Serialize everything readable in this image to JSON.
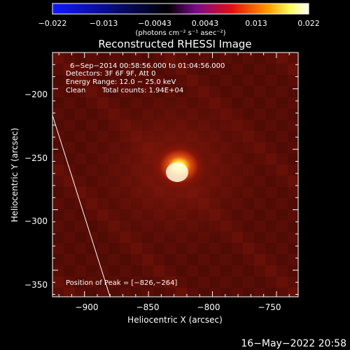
{
  "colorbar": {
    "ticks": [
      "−0.022",
      "−0.013",
      "−0.0043",
      "0.0043",
      "0.013",
      "0.022"
    ],
    "tick_values": [
      -0.022,
      -0.013,
      -0.0043,
      0.0043,
      0.013,
      0.022
    ],
    "range": [
      -0.022,
      0.022
    ],
    "unit_label": "(photons cm⁻² s⁻¹ asec⁻²)",
    "colors": [
      "#1018ff",
      "#000000",
      "#7a0a8c",
      "#e01010",
      "#ff9a00",
      "#ffff60",
      "#ffffff"
    ]
  },
  "chart_data": {
    "type": "heatmap",
    "title": "Reconstructed RHESSI Image",
    "xlabel": "Heliocentric X (arcsec)",
    "ylabel": "Heliocentric Y (arcsec)",
    "xlim": [
      -925,
      -733
    ],
    "ylim": [
      -372,
      -170
    ],
    "xticks": [
      -900,
      -850,
      -800,
      -750
    ],
    "yticks": [
      -200,
      -250,
      -300,
      -350
    ],
    "xtick_labels": [
      "−900",
      "−850",
      "−800",
      "−750"
    ],
    "ytick_labels": [
      "−200",
      "−250",
      "−300",
      "−350"
    ],
    "annotations": {
      "time": "6−Sep−2014 00:58:56.000 to 01:04:56.000",
      "detectors": "Detectors: 3F 6F 9F, Att 0",
      "energy": "Energy Range: 12.0 − 25.0 keV",
      "method": "Clean",
      "counts": "Total counts: 1.94E+04",
      "peak": "Position of Peak = [−826,−264]"
    },
    "peak": {
      "x": -826,
      "y": -264,
      "value": 0.022
    },
    "limb_line": [
      [
        -925,
        -222
      ],
      [
        -880,
        -372
      ]
    ]
  },
  "footer": {
    "date": "16−May−2022 20:58"
  }
}
